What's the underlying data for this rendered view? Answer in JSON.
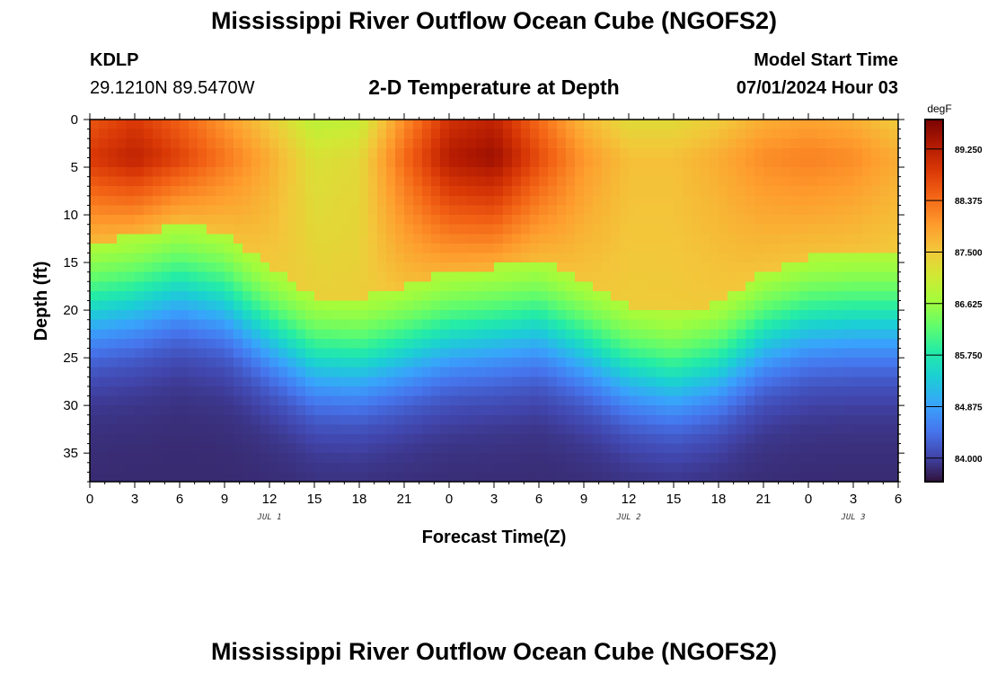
{
  "page": {
    "title": "Mississippi River Outflow Ocean Cube (NGOFS2)",
    "title_repeat": "Mississippi River Outflow Ocean Cube (NGOFS2)"
  },
  "station": {
    "id": "KDLP",
    "coords": "29.1210N  89.5470W"
  },
  "model": {
    "label": "Model Start Time",
    "start": "07/01/2024 Hour 03"
  },
  "chart_data": {
    "type": "heatmap",
    "title": "2-D Temperature at Depth",
    "xlabel": "Forecast Time(Z)",
    "ylabel": "Depth (ft)",
    "xlim": [
      0,
      54
    ],
    "ylim": [
      0,
      38
    ],
    "y_inverted": true,
    "x_ticks": [
      {
        "hour": 0,
        "label": "0"
      },
      {
        "hour": 3,
        "label": "3"
      },
      {
        "hour": 6,
        "label": "6"
      },
      {
        "hour": 9,
        "label": "9"
      },
      {
        "hour": 12,
        "label": "12"
      },
      {
        "hour": 15,
        "label": "15"
      },
      {
        "hour": 18,
        "label": "18"
      },
      {
        "hour": 21,
        "label": "21"
      },
      {
        "hour": 24,
        "label": "0"
      },
      {
        "hour": 27,
        "label": "3"
      },
      {
        "hour": 30,
        "label": "6"
      },
      {
        "hour": 33,
        "label": "9"
      },
      {
        "hour": 36,
        "label": "12"
      },
      {
        "hour": 39,
        "label": "15"
      },
      {
        "hour": 42,
        "label": "18"
      },
      {
        "hour": 45,
        "label": "21"
      },
      {
        "hour": 48,
        "label": "0"
      },
      {
        "hour": 51,
        "label": "3"
      },
      {
        "hour": 54,
        "label": "6"
      }
    ],
    "date_labels": [
      {
        "hour": 12,
        "label": "JUL 1"
      },
      {
        "hour": 36,
        "label": "JUL 2"
      },
      {
        "hour": 51,
        "label": "JUL 3"
      }
    ],
    "y_ticks": [
      0,
      5,
      10,
      15,
      20,
      25,
      30,
      35
    ],
    "colorbar": {
      "unit": "degF",
      "min": 83.6,
      "max": 89.75,
      "ticks": [
        "89.250",
        "88.375",
        "87.500",
        "86.625",
        "85.750",
        "84.875",
        "84.000"
      ]
    },
    "thermocline": {
      "hours": [
        0,
        3,
        6,
        9,
        12,
        15,
        18,
        21,
        24,
        27,
        30,
        33,
        36,
        39,
        42,
        45,
        48,
        51,
        54
      ],
      "depth_ft": [
        20,
        19.2,
        17.8,
        19,
        22.5,
        25.5,
        25.8,
        24.5,
        23,
        22.5,
        21.8,
        24,
        26.5,
        27.5,
        26.2,
        23,
        21.5,
        21.2,
        21.2
      ]
    },
    "surface_temperature": {
      "hours": [
        0,
        3,
        6,
        9,
        12,
        15,
        18,
        21,
        24,
        27,
        30,
        33,
        36,
        39,
        42,
        45,
        48,
        51,
        54
      ],
      "degF": [
        88.9,
        89.2,
        88.8,
        88.3,
        87.8,
        87.2,
        87.3,
        88.4,
        89.3,
        89.5,
        88.7,
        88.0,
        87.6,
        87.6,
        87.8,
        88.1,
        88.2,
        88.1,
        87.8
      ]
    },
    "bottom_temperature_degF": 83.8
  }
}
